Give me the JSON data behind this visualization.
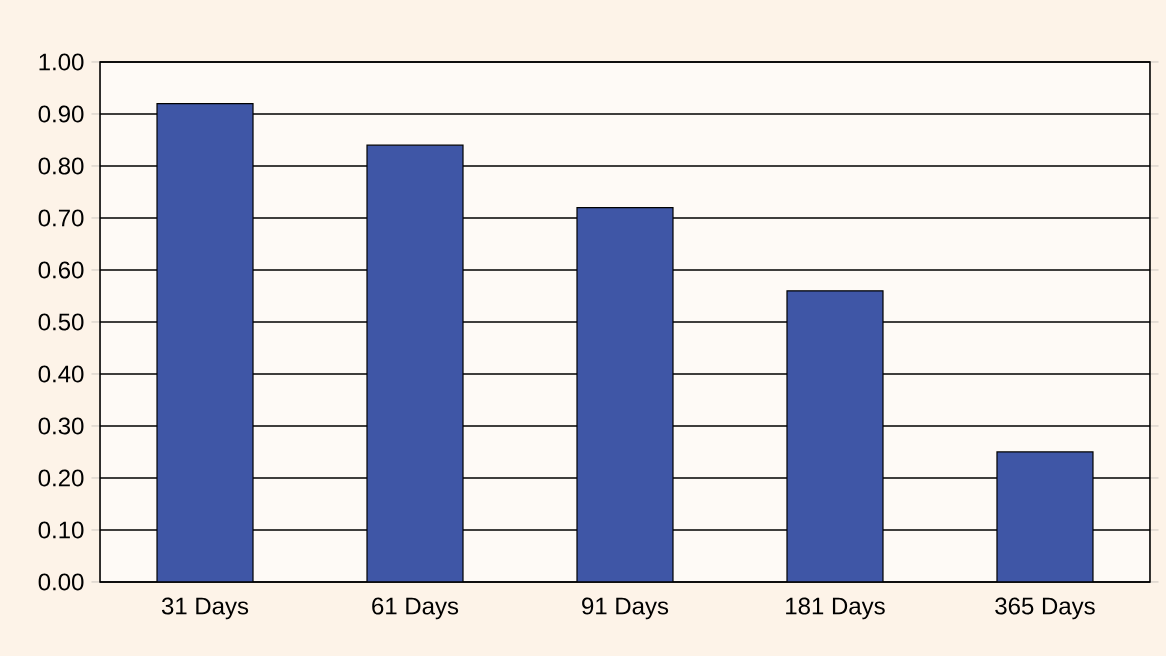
{
  "chart_data": {
    "type": "bar",
    "categories": [
      "31 Days",
      "61 Days",
      "91 Days",
      "181 Days",
      "365 Days"
    ],
    "values": [
      0.92,
      0.84,
      0.72,
      0.56,
      0.25
    ],
    "color": "#3f56a6",
    "ylim": [
      0,
      1
    ],
    "yticks": [
      {
        "value": 0,
        "label": "0.00"
      },
      {
        "value": 0.1,
        "label": "0.10"
      },
      {
        "value": 0.2,
        "label": "0.20"
      },
      {
        "value": 0.3,
        "label": "0.30"
      },
      {
        "value": 0.4,
        "label": "0.40"
      },
      {
        "value": 0.5,
        "label": "0.50"
      },
      {
        "value": 0.6,
        "label": "0.60"
      },
      {
        "value": 0.7,
        "label": "0.70"
      },
      {
        "value": 0.8,
        "label": "0.80"
      },
      {
        "value": 0.9,
        "label": "0.90"
      },
      {
        "value": 1,
        "label": "1.00"
      }
    ],
    "grid": "y"
  }
}
